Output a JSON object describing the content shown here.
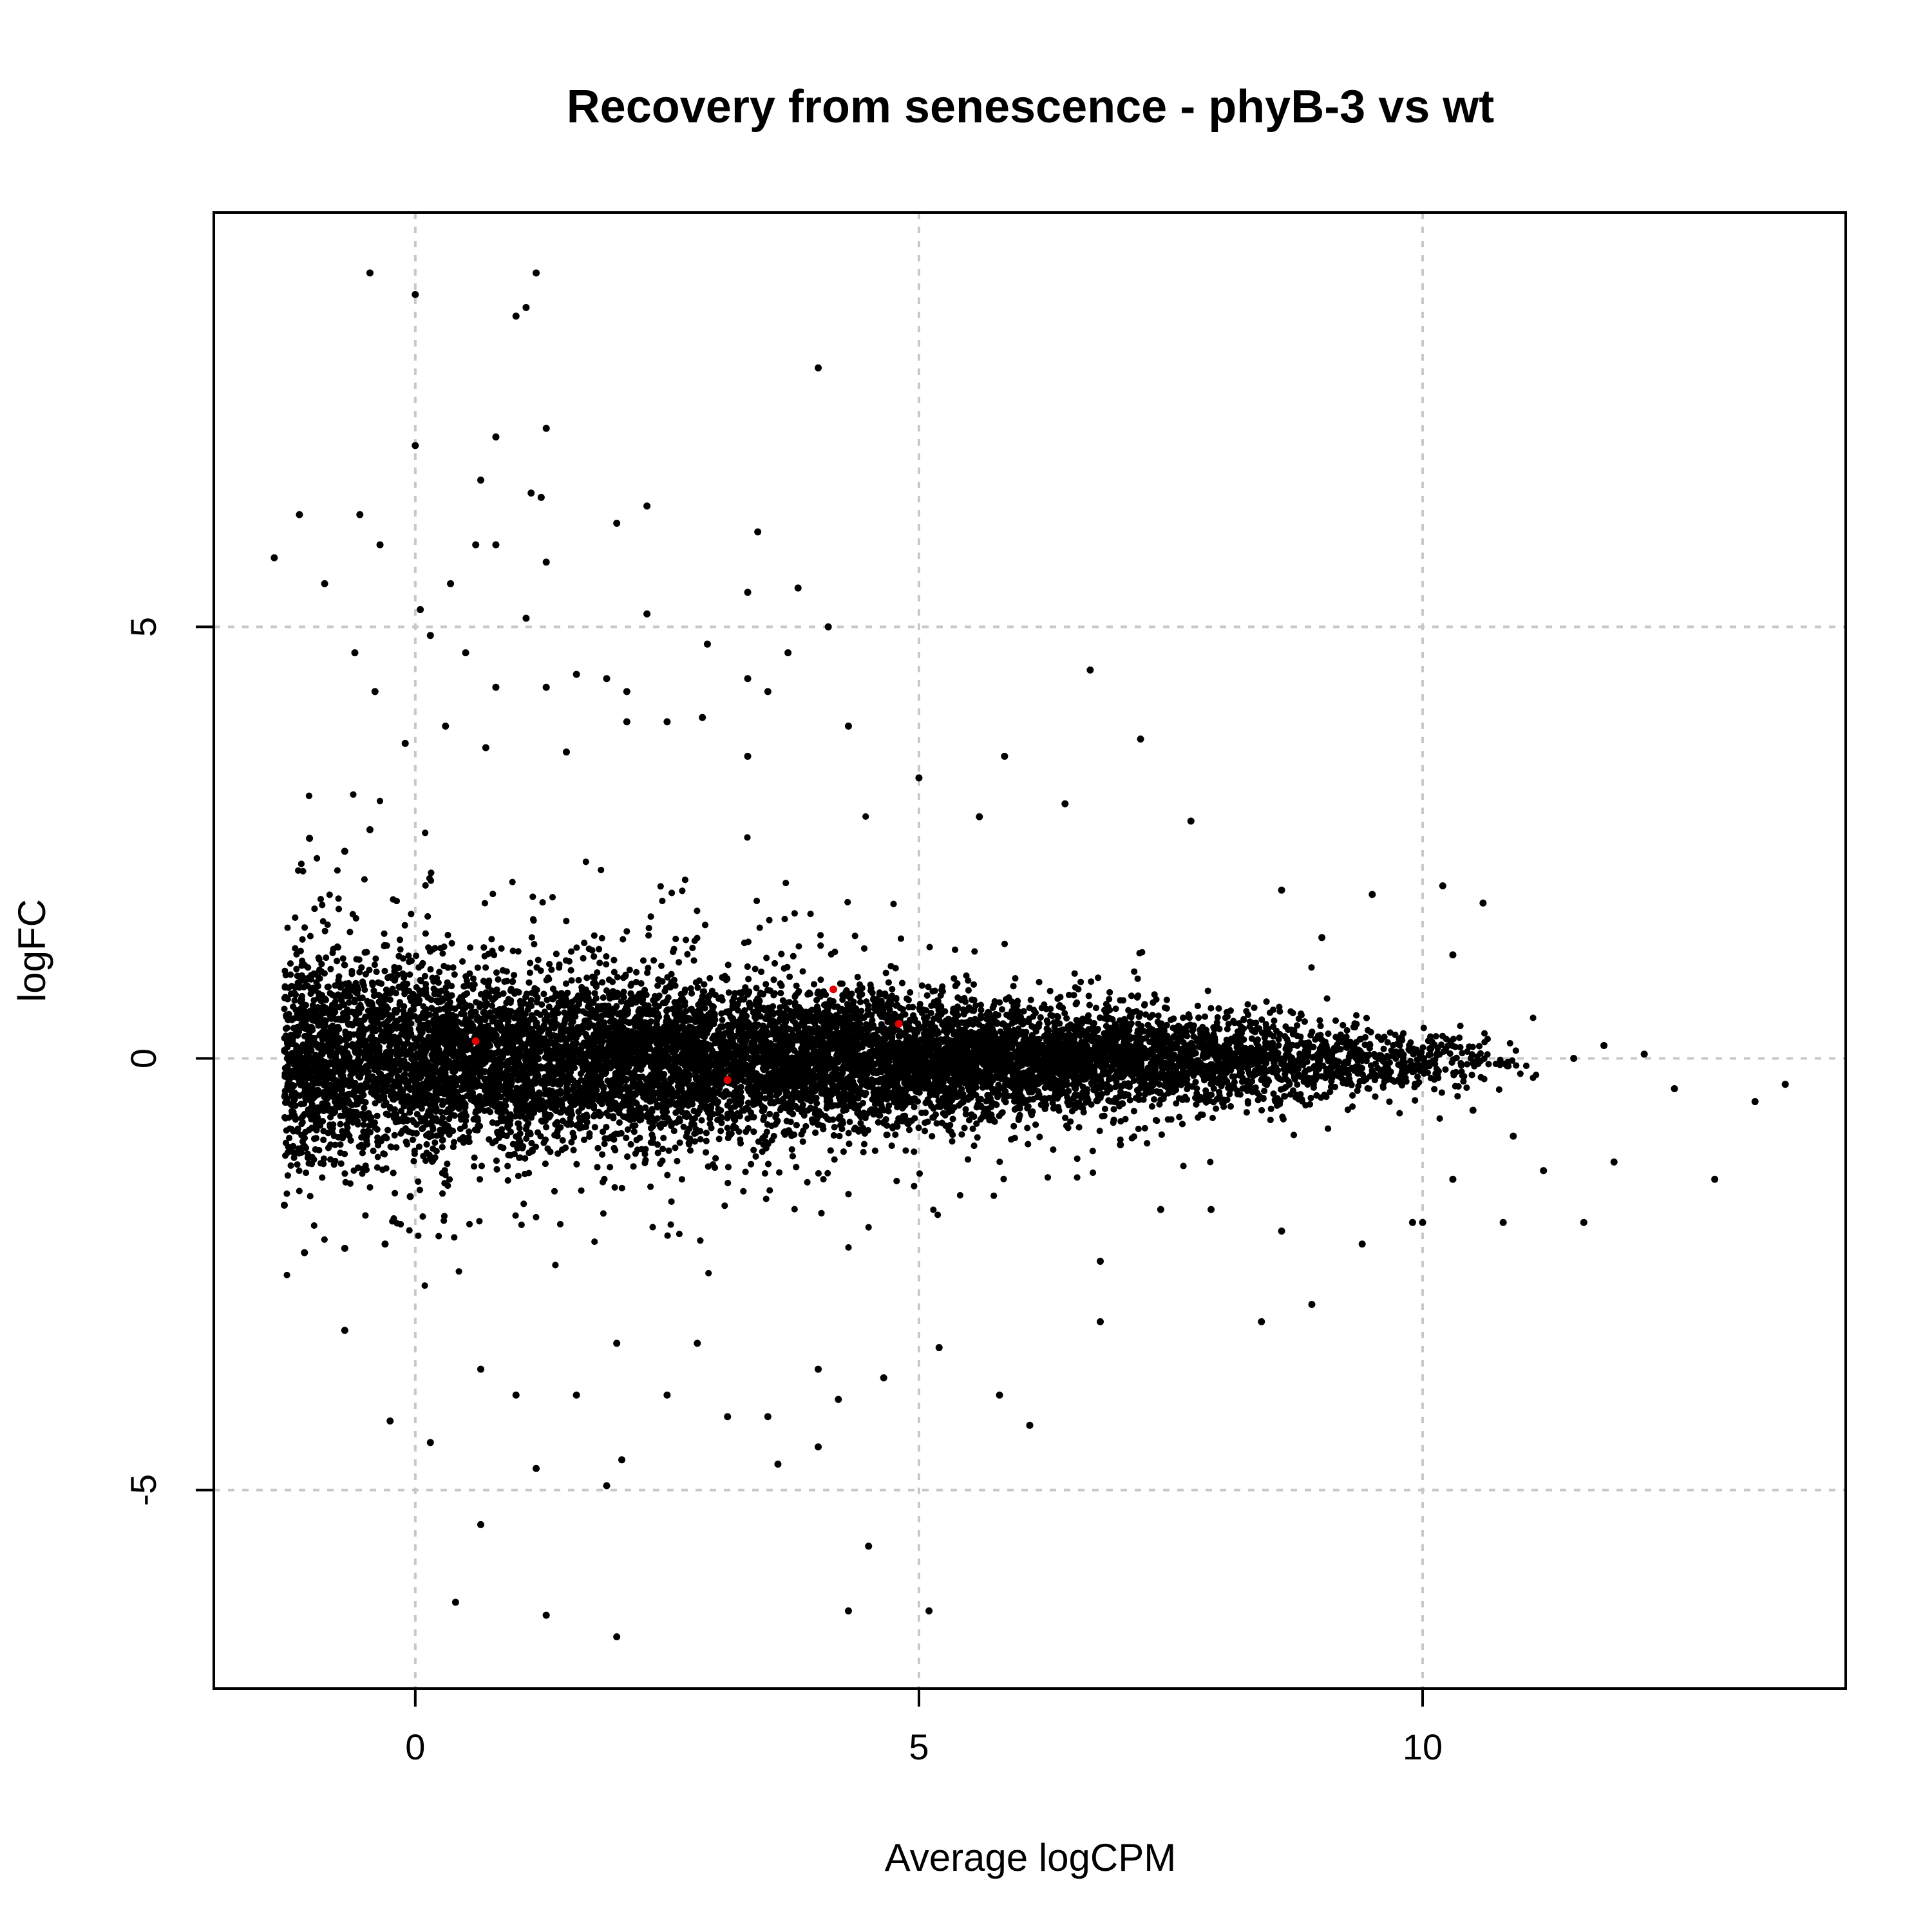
{
  "chart_data": {
    "type": "scatter",
    "title": "Recovery from senescence - phyB-3 vs wt",
    "xlabel": "Average logCPM",
    "ylabel": "logFC",
    "xlim": [
      -2,
      14.2
    ],
    "ylim": [
      -7.3,
      9.8
    ],
    "xticks": [
      0,
      5,
      10
    ],
    "yticks": [
      -5,
      0,
      5
    ],
    "grid": true,
    "legend": "none",
    "colors": {
      "point": "#000000",
      "highlight": "#e00000",
      "grid": "#c8c8c8"
    },
    "series": [
      {
        "color": "#000000",
        "points": [
          [
            -0.45,
            9.1
          ],
          [
            0.0,
            8.85
          ],
          [
            1.2,
            9.1
          ],
          [
            1.1,
            8.7
          ],
          [
            1.0,
            8.6
          ],
          [
            4.0,
            8.0
          ],
          [
            0.0,
            7.1
          ],
          [
            0.8,
            7.2
          ],
          [
            1.3,
            7.3
          ],
          [
            0.65,
            6.7
          ],
          [
            1.15,
            6.55
          ],
          [
            1.25,
            6.5
          ],
          [
            -1.15,
            6.3
          ],
          [
            -0.55,
            6.3
          ],
          [
            2.0,
            6.2
          ],
          [
            2.3,
            6.4
          ],
          [
            3.4,
            6.1
          ],
          [
            -1.4,
            5.8
          ],
          [
            -0.35,
            5.95
          ],
          [
            0.6,
            5.95
          ],
          [
            0.8,
            5.95
          ],
          [
            1.3,
            5.75
          ],
          [
            -0.9,
            5.5
          ],
          [
            0.35,
            5.5
          ],
          [
            3.3,
            5.4
          ],
          [
            3.8,
            5.45
          ],
          [
            1.1,
            5.1
          ],
          [
            2.3,
            5.15
          ],
          [
            0.05,
            5.2
          ],
          [
            4.1,
            5.0
          ],
          [
            6.7,
            4.5
          ],
          [
            2.9,
            4.8
          ],
          [
            0.15,
            4.9
          ],
          [
            -0.6,
            4.7
          ],
          [
            0.5,
            4.7
          ],
          [
            1.3,
            4.3
          ],
          [
            1.6,
            4.45
          ],
          [
            1.9,
            4.4
          ],
          [
            2.1,
            4.25
          ],
          [
            3.3,
            4.4
          ],
          [
            3.5,
            4.25
          ],
          [
            3.7,
            4.7
          ],
          [
            -0.4,
            4.25
          ],
          [
            0.8,
            4.3
          ],
          [
            4.3,
            3.85
          ],
          [
            5.0,
            3.25
          ],
          [
            5.85,
            3.5
          ],
          [
            7.2,
            3.7
          ],
          [
            7.7,
            2.75
          ],
          [
            6.45,
            2.95
          ],
          [
            5.6,
            2.8
          ],
          [
            2.1,
            3.9
          ],
          [
            2.5,
            3.9
          ],
          [
            2.85,
            3.95
          ],
          [
            -0.1,
            3.65
          ],
          [
            0.3,
            3.85
          ],
          [
            0.7,
            3.6
          ],
          [
            1.5,
            3.55
          ],
          [
            3.3,
            3.5
          ],
          [
            -1.05,
            2.55
          ],
          [
            -0.7,
            2.4
          ],
          [
            -0.45,
            2.65
          ],
          [
            9.5,
            1.9
          ],
          [
            10.2,
            2.0
          ],
          [
            10.6,
            1.8
          ],
          [
            8.6,
            1.95
          ],
          [
            9.0,
            1.4
          ],
          [
            10.3,
            1.2
          ],
          [
            8.6,
            -2.0
          ],
          [
            8.4,
            -3.05
          ],
          [
            8.9,
            -2.85
          ],
          [
            9.4,
            -2.15
          ],
          [
            9.9,
            -1.9
          ],
          [
            10.0,
            -1.9
          ],
          [
            10.8,
            -1.9
          ],
          [
            11.6,
            -1.9
          ],
          [
            11.9,
            -1.2
          ],
          [
            12.9,
            -1.4
          ],
          [
            13.3,
            -0.5
          ],
          [
            13.6,
            -0.3
          ],
          [
            12.5,
            -0.35
          ],
          [
            12.2,
            0.05
          ],
          [
            11.8,
            0.15
          ],
          [
            11.5,
            0.0
          ],
          [
            11.2,
            -1.3
          ],
          [
            10.9,
            -0.9
          ],
          [
            10.5,
            -0.6
          ],
          [
            10.3,
            -1.4
          ],
          [
            7.0,
            -1.0
          ],
          [
            6.8,
            -2.35
          ],
          [
            6.8,
            -3.05
          ],
          [
            7.4,
            -1.75
          ],
          [
            7.9,
            -1.75
          ],
          [
            5.8,
            -3.9
          ],
          [
            6.1,
            -4.25
          ],
          [
            5.2,
            -3.35
          ],
          [
            5.1,
            -6.4
          ],
          [
            4.3,
            -6.4
          ],
          [
            4.5,
            -5.65
          ],
          [
            4.2,
            -3.95
          ],
          [
            4.0,
            -3.6
          ],
          [
            4.0,
            -4.5
          ],
          [
            3.6,
            -4.7
          ],
          [
            3.5,
            -4.15
          ],
          [
            3.1,
            -4.15
          ],
          [
            2.5,
            -3.9
          ],
          [
            2.0,
            -3.3
          ],
          [
            2.0,
            -6.7
          ],
          [
            2.05,
            -4.65
          ],
          [
            1.9,
            -4.95
          ],
          [
            1.2,
            -4.75
          ],
          [
            1.3,
            -6.45
          ],
          [
            1.0,
            -3.9
          ],
          [
            0.65,
            -3.6
          ],
          [
            0.65,
            -5.4
          ],
          [
            0.4,
            -6.3
          ],
          [
            0.15,
            -4.45
          ],
          [
            -0.25,
            -4.2
          ],
          [
            -1.3,
            -1.7
          ],
          [
            -1.1,
            -2.25
          ],
          [
            -0.7,
            -2.2
          ],
          [
            -0.7,
            -3.15
          ],
          [
            -0.05,
            -1.6
          ],
          [
            -0.3,
            -2.15
          ],
          [
            1.6,
            -3.9
          ],
          [
            2.8,
            -3.3
          ],
          [
            4.65,
            -3.7
          ]
        ]
      },
      {
        "color": "#e00000",
        "points": [
          [
            0.6,
            0.2
          ],
          [
            3.1,
            -0.25
          ],
          [
            4.15,
            0.8
          ],
          [
            4.8,
            0.4
          ]
        ]
      }
    ]
  }
}
